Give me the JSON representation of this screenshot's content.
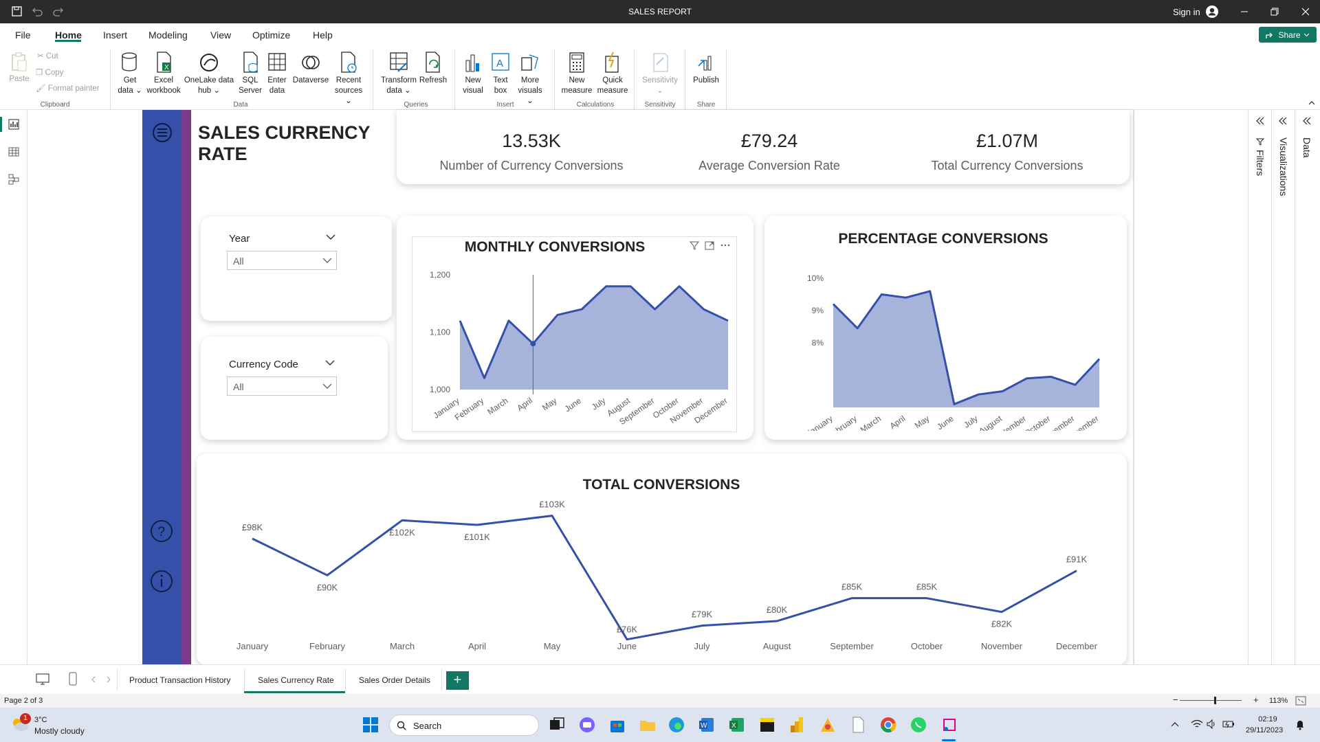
{
  "titlebar": {
    "title": "SALES REPORT",
    "signin": "Sign in"
  },
  "menu": {
    "items": [
      "File",
      "Home",
      "Insert",
      "Modeling",
      "View",
      "Optimize",
      "Help"
    ],
    "active": "Home",
    "share": "Share"
  },
  "ribbon": {
    "clipboard": {
      "paste": "Paste",
      "cut": "Cut",
      "copy": "Copy",
      "format_painter": "Format painter",
      "group": "Clipboard"
    },
    "data": {
      "get_data": "Get data",
      "excel": "Excel workbook",
      "onelake": "OneLake data hub",
      "sql": "SQL Server",
      "enter": "Enter data",
      "dataverse": "Dataverse",
      "recent": "Recent sources",
      "group": "Data"
    },
    "queries": {
      "transform": "Transform data",
      "refresh": "Refresh",
      "group": "Queries"
    },
    "insert": {
      "new_visual": "New visual",
      "text_box": "Text box",
      "more_visuals": "More visuals",
      "group": "Insert"
    },
    "calculations": {
      "new_measure": "New measure",
      "quick_measure": "Quick measure",
      "group": "Calculations"
    },
    "sensitivity": {
      "label": "Sensitivity",
      "group": "Sensitivity"
    },
    "share": {
      "publish": "Publish",
      "group": "Share"
    }
  },
  "report": {
    "title_line1": "SALES CURRENCY",
    "title_line2": "RATE",
    "kpis": [
      {
        "value": "13.53K",
        "label": "Number of Currency Conversions"
      },
      {
        "value": "£79.24",
        "label": "Average Conversion Rate"
      },
      {
        "value": "£1.07M",
        "label": "Total Currency Conversions"
      }
    ],
    "slicers": [
      {
        "title": "Year",
        "value": "All"
      },
      {
        "title": "Currency Code",
        "value": "All"
      }
    ]
  },
  "months": [
    "January",
    "February",
    "March",
    "April",
    "May",
    "June",
    "July",
    "August",
    "September",
    "October",
    "November",
    "December"
  ],
  "chart_data": [
    {
      "type": "area",
      "title": "MONTHLY CONVERSIONS",
      "categories": [
        "January",
        "February",
        "March",
        "April",
        "May",
        "June",
        "July",
        "August",
        "September",
        "October",
        "November",
        "December"
      ],
      "values": [
        1120,
        1020,
        1120,
        1080,
        1130,
        1140,
        1180,
        1180,
        1140,
        1180,
        1140,
        1120
      ],
      "ylim": [
        1000,
        1200
      ],
      "yticks": [
        "1,000",
        "1,100",
        "1,200"
      ],
      "color": "#3450a8"
    },
    {
      "type": "area",
      "title": "PERCENTAGE CONVERSIONS",
      "categories": [
        "January",
        "February",
        "March",
        "April",
        "May",
        "June",
        "July",
        "August",
        "September",
        "October",
        "November",
        "December"
      ],
      "values": [
        9.2,
        8.45,
        9.5,
        9.4,
        9.6,
        6.1,
        6.4,
        6.5,
        6.9,
        6.95,
        6.7,
        7.5
      ],
      "ylim": [
        6,
        10
      ],
      "yticks": [
        "8%",
        "9%",
        "10%"
      ],
      "color": "#3450a8"
    },
    {
      "type": "line",
      "title": "TOTAL CONVERSIONS",
      "categories": [
        "January",
        "February",
        "March",
        "April",
        "May",
        "June",
        "July",
        "August",
        "September",
        "October",
        "November",
        "December"
      ],
      "values": [
        98,
        90,
        102,
        101,
        103,
        76,
        79,
        80,
        85,
        85,
        82,
        91
      ],
      "data_labels": [
        "£98K",
        "£90K",
        "£102K",
        "£101K",
        "£103K",
        "£76K",
        "£79K",
        "£80K",
        "£85K",
        "£85K",
        "£82K",
        "£91K"
      ],
      "color": "#3450a8"
    }
  ],
  "panes": {
    "filters": "Filters",
    "visualizations": "Visualizations",
    "data": "Data"
  },
  "tabs": {
    "items": [
      "Product Transaction History",
      "Sales Currency Rate",
      "Sales Order Details"
    ],
    "active": "Sales Currency Rate"
  },
  "status": {
    "page": "Page 2 of 3",
    "zoom": "113%"
  },
  "taskbar": {
    "temp": "3°C",
    "weather": "Mostly cloudy",
    "search": "Search",
    "time": "02:19",
    "date": "29/11/2023",
    "badge": "1"
  }
}
